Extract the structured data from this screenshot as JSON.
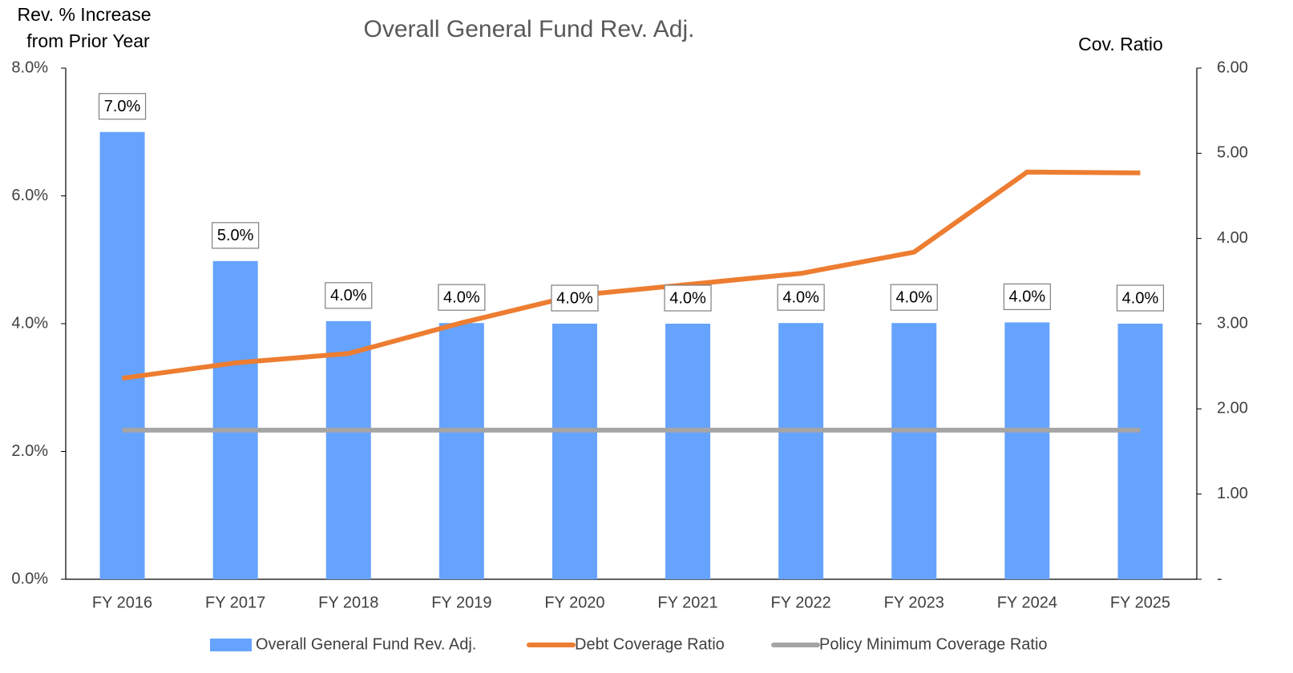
{
  "chart_data": {
    "type": "bar",
    "title": "Overall General Fund Rev. Adj.",
    "y_label": [
      "Rev. % Increase",
      "from Prior Year"
    ],
    "y2_label": "Cov. Ratio",
    "categories": [
      "FY 2016",
      "FY 2017",
      "FY 2018",
      "FY 2019",
      "FY 2020",
      "FY 2021",
      "FY 2022",
      "FY 2023",
      "FY 2024",
      "FY 2025"
    ],
    "series": [
      {
        "name": "Overall General Fund Rev. Adj.",
        "type": "bar",
        "color": "#66a3ff",
        "values": [
          7.0,
          4.98,
          4.04,
          4.01,
          4.0,
          4.0,
          4.01,
          4.01,
          4.02,
          4.0
        ],
        "value_labels": [
          "7.0%",
          "5.0%",
          "4.0%",
          "4.0%",
          "4.0%",
          "4.0%",
          "4.0%",
          "4.0%",
          "4.0%",
          "4.0%"
        ]
      },
      {
        "name": "Debt Coverage Ratio",
        "type": "line",
        "axis": "y2",
        "color": "#ed7d31",
        "values": [
          2.36,
          2.54,
          2.65,
          3.01,
          3.33,
          3.46,
          3.59,
          3.84,
          4.78,
          4.77
        ]
      },
      {
        "name": "Policy Minimum Coverage Ratio",
        "type": "line",
        "axis": "y2",
        "color": "#a5a5a5",
        "values": [
          1.75,
          1.75,
          1.75,
          1.75,
          1.75,
          1.75,
          1.75,
          1.75,
          1.75,
          1.75
        ]
      }
    ],
    "ylim": [
      0,
      8
    ],
    "yticks": [
      {
        "value": 0,
        "label": "0.0%"
      },
      {
        "value": 2,
        "label": "2.0%"
      },
      {
        "value": 4,
        "label": "4.0%"
      },
      {
        "value": 6,
        "label": "6.0%"
      },
      {
        "value": 8,
        "label": "8.0%"
      }
    ],
    "y2lim": [
      0,
      6
    ],
    "y2ticks": [
      {
        "value": 0,
        "label": "-"
      },
      {
        "value": 1,
        "label": "1.00"
      },
      {
        "value": 2,
        "label": "2.00"
      },
      {
        "value": 3,
        "label": "3.00"
      },
      {
        "value": 4,
        "label": "4.00"
      },
      {
        "value": 5,
        "label": "5.00"
      },
      {
        "value": 6,
        "label": "6.00"
      }
    ],
    "legend": "bottom"
  }
}
